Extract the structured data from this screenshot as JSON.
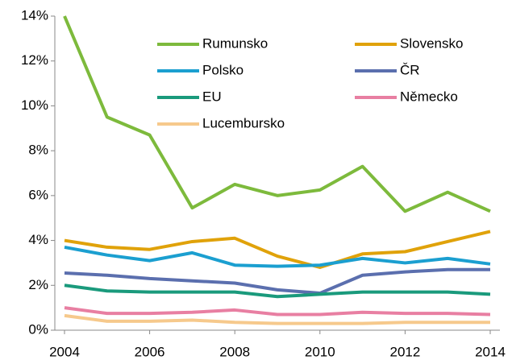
{
  "chart_data": {
    "type": "line",
    "x": [
      2004,
      2005,
      2006,
      2007,
      2008,
      2009,
      2010,
      2011,
      2012,
      2013,
      2014
    ],
    "series": [
      {
        "name": "Rumunsko",
        "color": "#7dba3c",
        "values": [
          14,
          9.5,
          8.7,
          5.45,
          6.5,
          6.0,
          6.25,
          7.3,
          5.3,
          6.15,
          5.3
        ]
      },
      {
        "name": "Slovensko",
        "color": "#e0a20a",
        "values": [
          4.0,
          3.7,
          3.6,
          3.95,
          4.1,
          3.3,
          2.8,
          3.4,
          3.5,
          3.95,
          4.4
        ]
      },
      {
        "name": "Polsko",
        "color": "#1b9fd0",
        "values": [
          3.7,
          3.35,
          3.1,
          3.45,
          2.9,
          2.85,
          2.9,
          3.2,
          3.0,
          3.2,
          2.95
        ]
      },
      {
        "name": "ČR",
        "color": "#5b6fae",
        "values": [
          2.55,
          2.45,
          2.3,
          2.2,
          2.1,
          1.8,
          1.65,
          2.45,
          2.6,
          2.7,
          2.7
        ]
      },
      {
        "name": "EU",
        "color": "#1a9a7c",
        "values": [
          2.0,
          1.75,
          1.7,
          1.7,
          1.7,
          1.5,
          1.6,
          1.7,
          1.7,
          1.7,
          1.6
        ]
      },
      {
        "name": "Německo",
        "color": "#e87fa2",
        "values": [
          1.0,
          0.75,
          0.75,
          0.8,
          0.9,
          0.7,
          0.7,
          0.8,
          0.75,
          0.75,
          0.7
        ]
      },
      {
        "name": "Lucembursko",
        "color": "#f6c98c",
        "values": [
          0.65,
          0.4,
          0.4,
          0.45,
          0.35,
          0.3,
          0.3,
          0.3,
          0.35,
          0.35,
          0.35
        ]
      }
    ],
    "xlim": [
      2004,
      2014
    ],
    "xticks": [
      2004,
      2006,
      2008,
      2010,
      2012,
      2014
    ],
    "ylim": [
      0,
      14
    ],
    "yticks": [
      {
        "value": 0,
        "label": "0%"
      },
      {
        "value": 2,
        "label": "2%"
      },
      {
        "value": 4,
        "label": "4%"
      },
      {
        "value": 6,
        "label": "6%"
      },
      {
        "value": 8,
        "label": "8%"
      },
      {
        "value": 10,
        "label": "10%"
      },
      {
        "value": 12,
        "label": "12%"
      },
      {
        "value": 14,
        "label": "14%"
      }
    ],
    "grid": false
  }
}
